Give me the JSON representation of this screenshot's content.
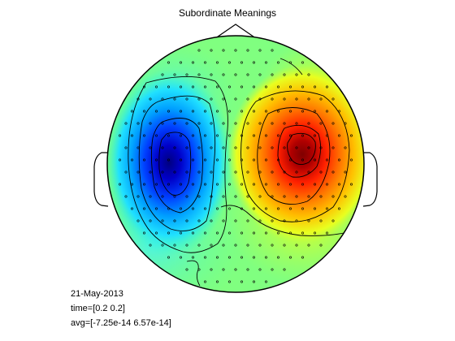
{
  "figure": {
    "title": "Subordinate Meanings",
    "info": {
      "date": "21-May-2013",
      "time": "time=[0.2 0.2]",
      "avg": "avg=[-7.25e-14 6.57e-14]"
    }
  },
  "colors": {
    "background": "#ffffff",
    "head_outline": "#000000",
    "contours": "#000000",
    "electrodes": "#000000",
    "colormap": "jet"
  },
  "map_description": {
    "negative_extreme_color": "#00008f",
    "positive_extreme_color": "#800000",
    "neutral_color": "#80ff80"
  }
}
